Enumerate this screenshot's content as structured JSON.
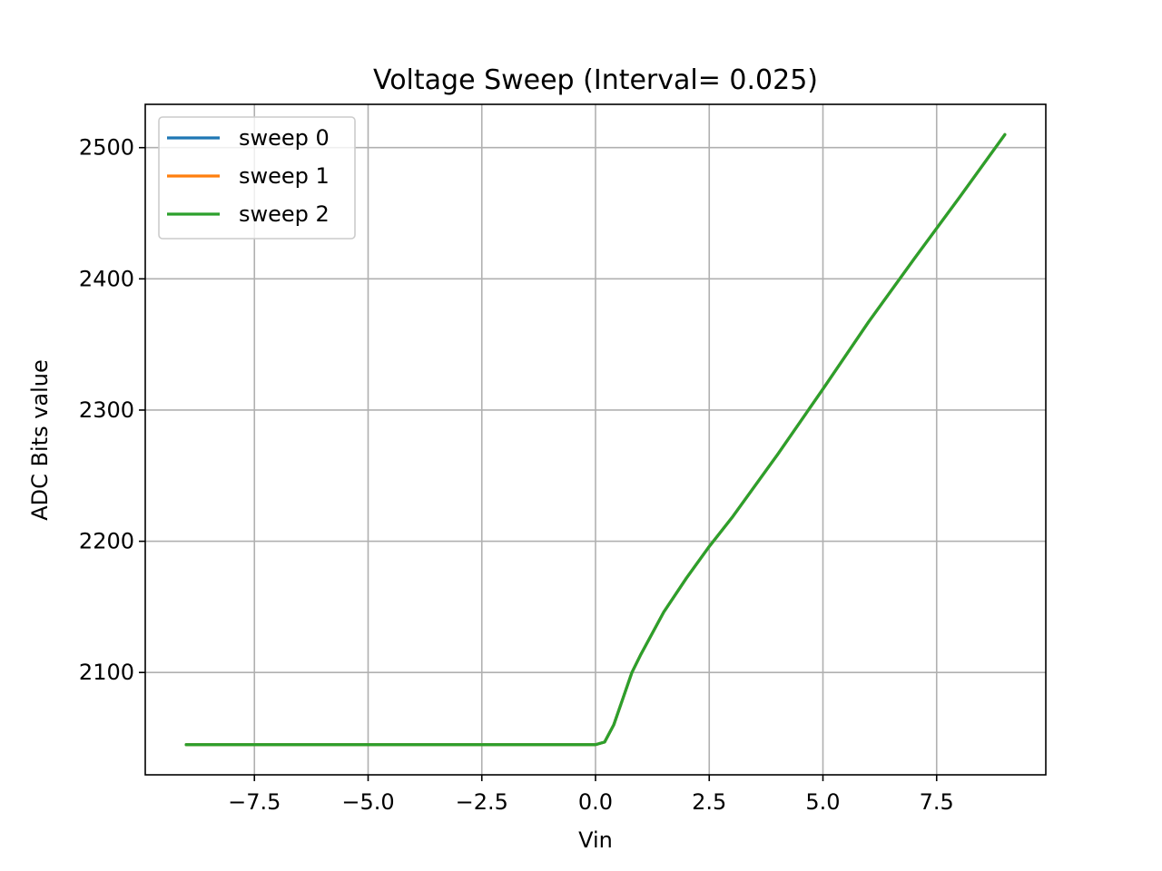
{
  "chart_data": {
    "type": "line",
    "title": "Voltage Sweep (Interval= 0.025)",
    "xlabel": "Vin",
    "ylabel": "ADC Bits value",
    "xlim": [
      -9.9,
      9.9
    ],
    "ylim": [
      2022,
      2533
    ],
    "xticks": [
      -7.5,
      -5.0,
      -2.5,
      0.0,
      2.5,
      5.0,
      7.5
    ],
    "xtick_labels": [
      "−7.5",
      "−5.0",
      "−2.5",
      "0.0",
      "2.5",
      "5.0",
      "7.5"
    ],
    "yticks": [
      2100,
      2200,
      2300,
      2400,
      2500
    ],
    "ytick_labels": [
      "2100",
      "2200",
      "2300",
      "2400",
      "2500"
    ],
    "grid": true,
    "legend_position": "upper-left",
    "series": [
      {
        "name": "sweep 0",
        "color": "#1f77b4",
        "x": [
          -9.0,
          -7.5,
          -5.0,
          -2.5,
          0.0,
          0.2,
          0.4,
          0.6,
          0.8,
          1.0,
          1.5,
          2.0,
          2.5,
          3.0,
          4.0,
          5.0,
          6.0,
          7.0,
          8.0,
          9.0
        ],
        "y": [
          2045,
          2045,
          2045,
          2045,
          2045,
          2047,
          2060,
          2080,
          2100,
          2114,
          2146,
          2172,
          2196,
          2218,
          2266,
          2316,
          2367,
          2415,
          2462,
          2510
        ]
      },
      {
        "name": "sweep 1",
        "color": "#ff7f0e",
        "x": [
          -9.0,
          -7.5,
          -5.0,
          -2.5,
          0.0,
          0.2,
          0.4,
          0.6,
          0.8,
          1.0,
          1.5,
          2.0,
          2.5,
          3.0,
          4.0,
          5.0,
          6.0,
          7.0,
          8.0,
          9.0
        ],
        "y": [
          2045,
          2045,
          2045,
          2045,
          2045,
          2047,
          2060,
          2080,
          2100,
          2114,
          2146,
          2172,
          2196,
          2218,
          2266,
          2316,
          2367,
          2415,
          2462,
          2510
        ]
      },
      {
        "name": "sweep 2",
        "color": "#2ca02c",
        "x": [
          -9.0,
          -7.5,
          -5.0,
          -2.5,
          0.0,
          0.2,
          0.4,
          0.6,
          0.8,
          1.0,
          1.5,
          2.0,
          2.5,
          3.0,
          4.0,
          5.0,
          6.0,
          7.0,
          8.0,
          9.0
        ],
        "y": [
          2045,
          2045,
          2045,
          2045,
          2045,
          2047,
          2060,
          2080,
          2100,
          2114,
          2146,
          2172,
          2196,
          2218,
          2266,
          2316,
          2367,
          2415,
          2462,
          2510
        ]
      }
    ]
  }
}
